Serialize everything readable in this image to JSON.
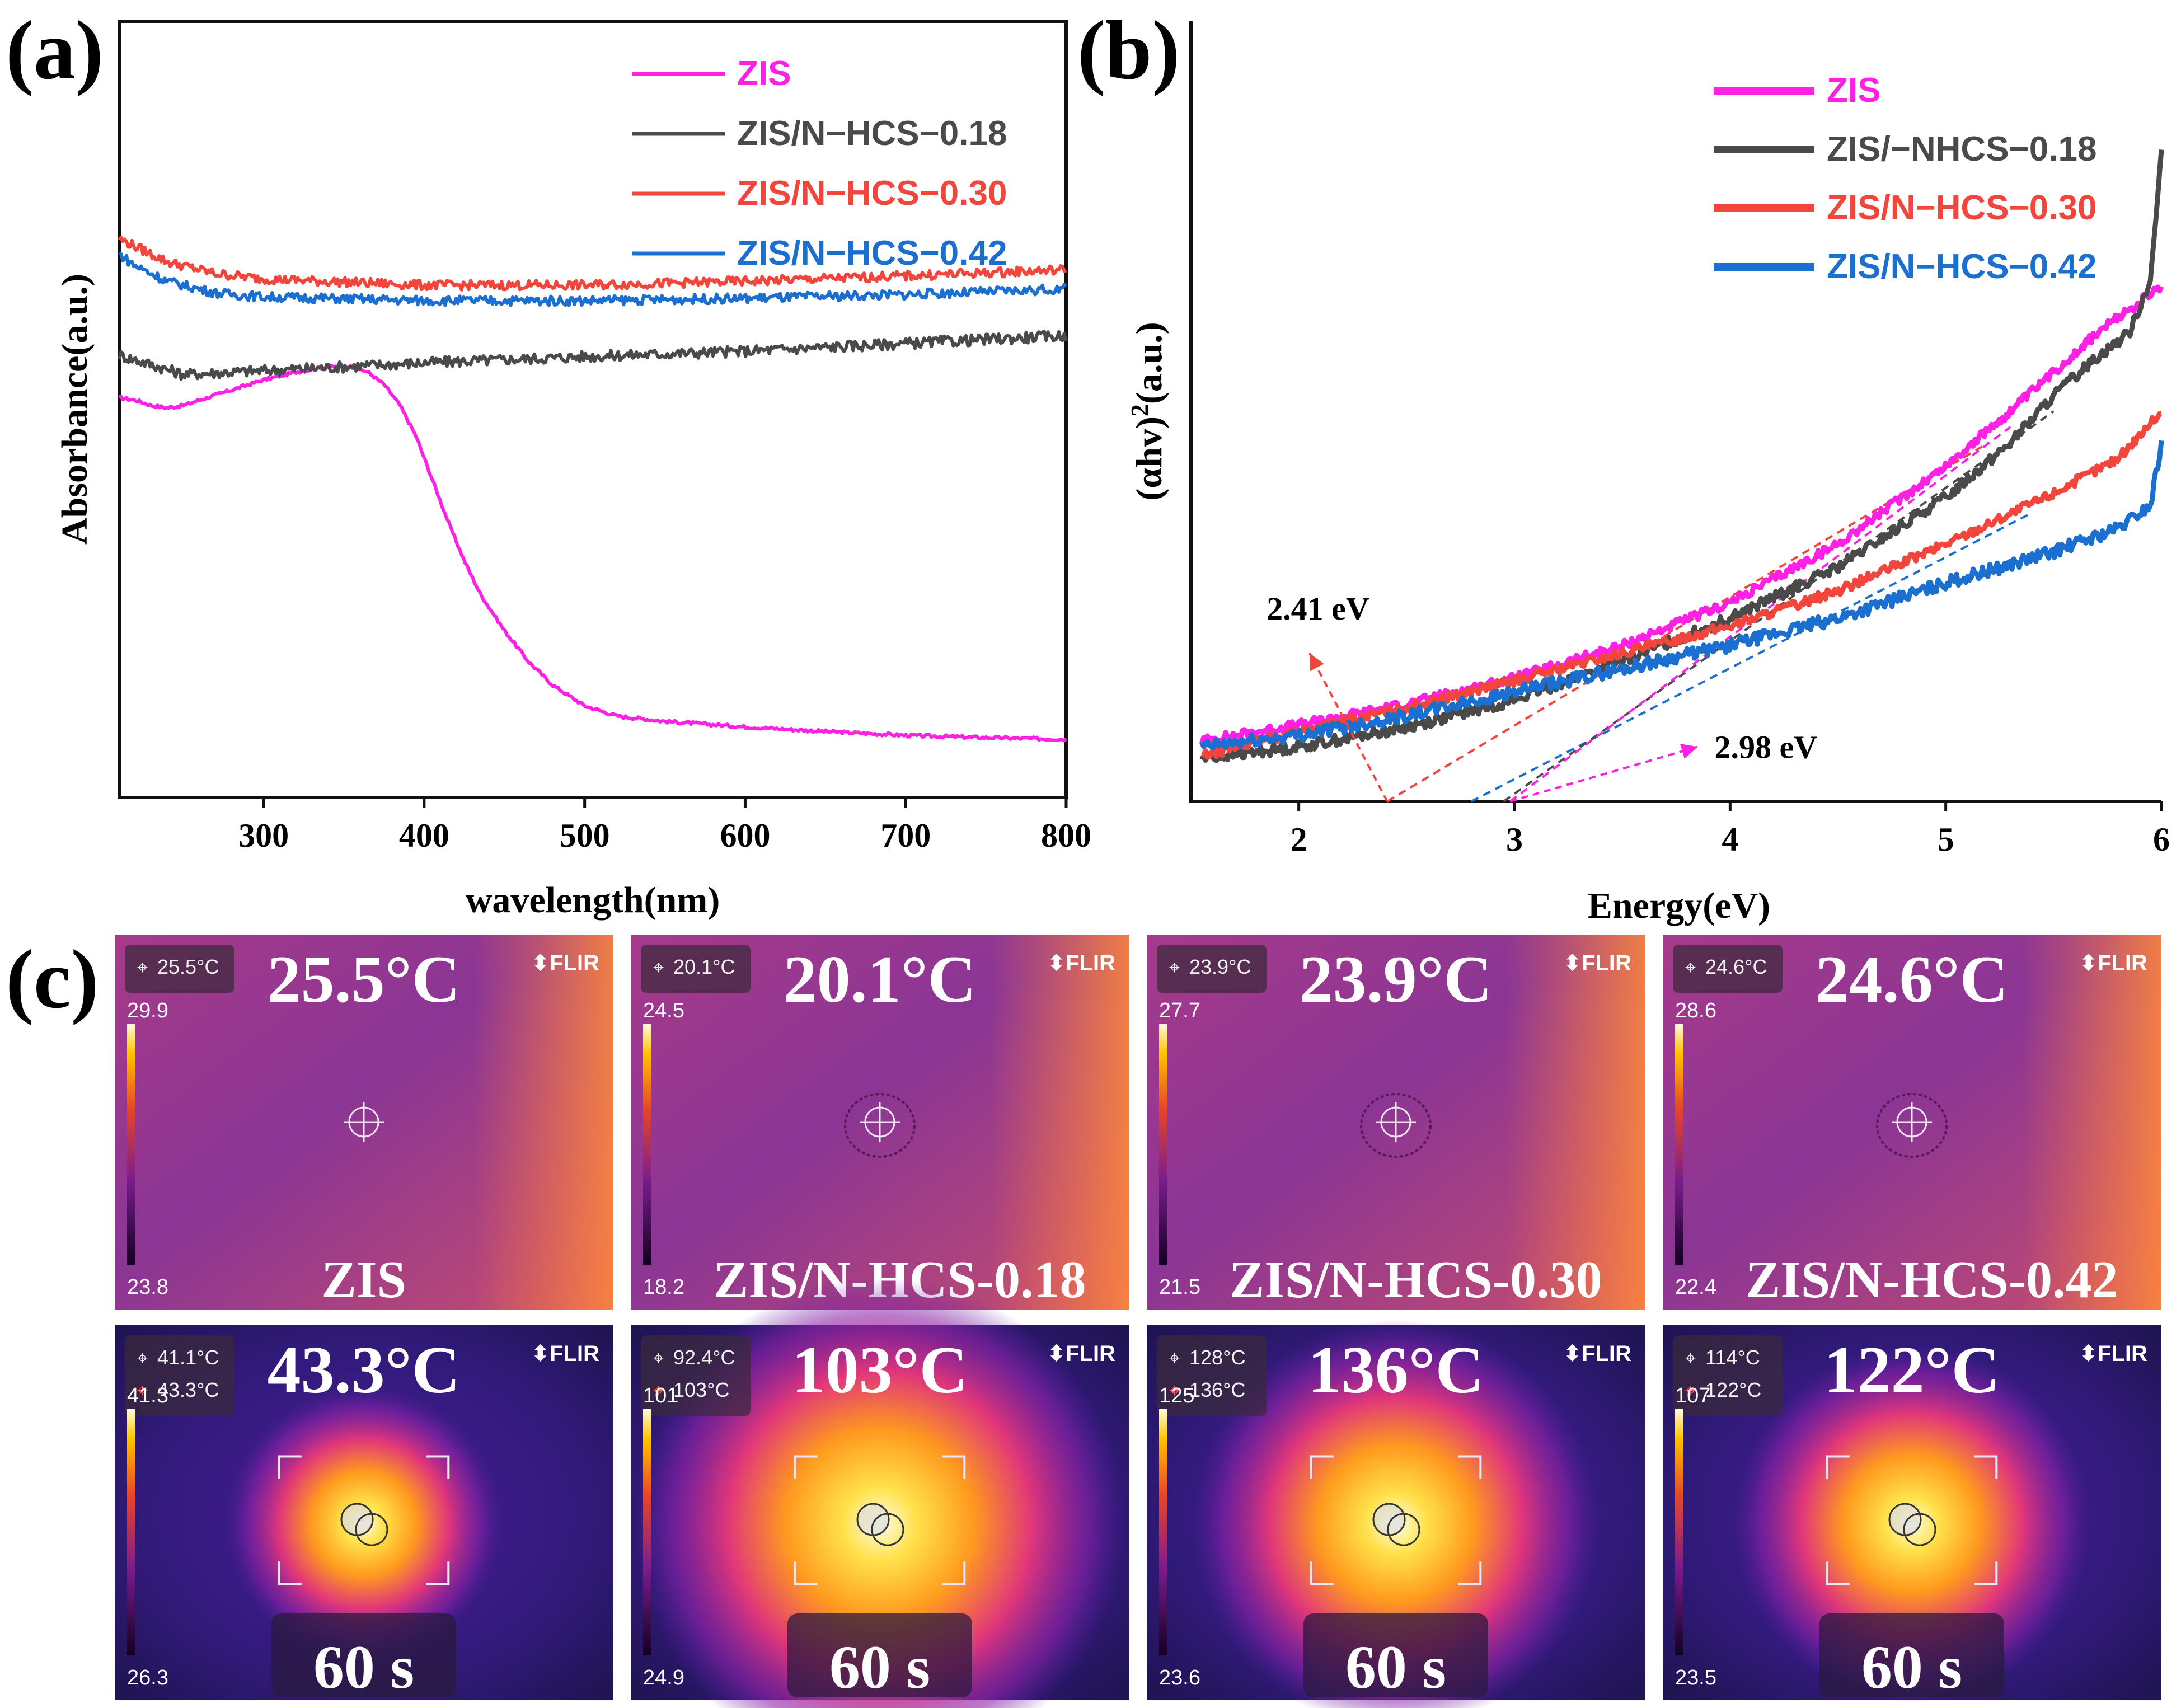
{
  "panel_labels": {
    "a": "(a)",
    "b": "(b)",
    "c": "(c)"
  },
  "colors": {
    "ZIS": "#ff20e6",
    "ZIS_N_HCS_0_18": "#4a4a4a",
    "ZIS_N_HCS_0_30": "#f2453c",
    "ZIS_N_HCS_0_42": "#1a6fd0"
  },
  "chart_data": [
    {
      "id": "a",
      "type": "line",
      "xlabel": "wavelength(nm)",
      "ylabel": "Absorbance(a.u.)",
      "xlim": [
        210,
        800
      ],
      "ylim": [
        0,
        1
      ],
      "xticks": [
        300,
        400,
        500,
        600,
        700,
        800
      ],
      "grid": false,
      "legend_position": "top-right",
      "series": [
        {
          "name": "ZIS",
          "color_key": "ZIS",
          "x": [
            210,
            220,
            230,
            240,
            250,
            260,
            280,
            300,
            320,
            340,
            355,
            365,
            375,
            385,
            395,
            405,
            415,
            425,
            435,
            450,
            465,
            480,
            500,
            520,
            550,
            600,
            650,
            700,
            750,
            800
          ],
          "y": [
            0.515,
            0.512,
            0.505,
            0.502,
            0.505,
            0.512,
            0.525,
            0.538,
            0.548,
            0.555,
            0.555,
            0.548,
            0.532,
            0.505,
            0.465,
            0.41,
            0.355,
            0.305,
            0.262,
            0.215,
            0.175,
            0.145,
            0.118,
            0.105,
            0.098,
            0.091,
            0.085,
            0.08,
            0.077,
            0.075
          ],
          "noise": 0.002
        },
        {
          "name": "ZIS/N−HCS−0.18",
          "color_key": "ZIS_N_HCS_0_18",
          "x": [
            210,
            250,
            300,
            400,
            500,
            600,
            700,
            800
          ],
          "y": [
            0.57,
            0.545,
            0.55,
            0.56,
            0.568,
            0.575,
            0.585,
            0.595
          ],
          "noise": 0.007
        },
        {
          "name": "ZIS/N−HCS−0.30",
          "color_key": "ZIS_N_HCS_0_30",
          "x": [
            210,
            220,
            240,
            270,
            300,
            400,
            500,
            600,
            700,
            800
          ],
          "y": [
            0.72,
            0.71,
            0.69,
            0.675,
            0.668,
            0.66,
            0.66,
            0.665,
            0.672,
            0.68
          ],
          "noise": 0.006
        },
        {
          "name": "ZIS/N−HCS−0.42",
          "color_key": "ZIS_N_HCS_0_42",
          "x": [
            210,
            220,
            240,
            270,
            300,
            400,
            500,
            600,
            700,
            800
          ],
          "y": [
            0.7,
            0.685,
            0.665,
            0.65,
            0.645,
            0.64,
            0.64,
            0.643,
            0.648,
            0.655
          ],
          "noise": 0.006
        }
      ]
    },
    {
      "id": "b",
      "type": "line",
      "xlabel": "Energy(eV)",
      "ylabel": "(αhv)",
      "ylabel_sup": "2",
      "ylabel_tail": "(a.u.)",
      "xlim": [
        1.5,
        6
      ],
      "ylim": [
        0,
        1
      ],
      "xticks": [
        2,
        3,
        4,
        5,
        6
      ],
      "grid": false,
      "legend_position": "top-right",
      "series": [
        {
          "name": "ZIS",
          "color_key": "ZIS",
          "x": [
            1.55,
            2,
            2.5,
            3,
            3.5,
            4,
            4.5,
            5,
            5.3,
            5.5,
            5.7,
            5.85,
            6
          ],
          "y": [
            0.078,
            0.098,
            0.125,
            0.158,
            0.2,
            0.255,
            0.33,
            0.43,
            0.5,
            0.55,
            0.6,
            0.63,
            0.66
          ],
          "noise": 0.006
        },
        {
          "name": "ZIS/−NHCS−0.18",
          "color_key": "ZIS_N_HCS_0_18",
          "x": [
            1.55,
            2,
            2.5,
            3,
            3.5,
            4,
            4.5,
            5,
            5.3,
            5.5,
            5.7,
            5.85,
            5.95,
            6
          ],
          "y": [
            0.055,
            0.07,
            0.095,
            0.13,
            0.18,
            0.235,
            0.3,
            0.39,
            0.46,
            0.52,
            0.57,
            0.6,
            0.67,
            0.83
          ],
          "noise": 0.007
        },
        {
          "name": "ZIS/N−HCS−0.30",
          "color_key": "ZIS_N_HCS_0_30",
          "x": [
            1.55,
            2,
            2.5,
            3,
            3.5,
            4,
            4.5,
            5,
            5.5,
            5.8,
            6
          ],
          "y": [
            0.058,
            0.09,
            0.12,
            0.155,
            0.19,
            0.225,
            0.27,
            0.33,
            0.395,
            0.44,
            0.5
          ],
          "noise": 0.006
        },
        {
          "name": "ZIS/N−HCS−0.42",
          "color_key": "ZIS_N_HCS_0_42",
          "x": [
            1.55,
            2,
            2.5,
            3,
            3.5,
            4,
            4.5,
            5,
            5.5,
            5.8,
            5.95,
            6
          ],
          "y": [
            0.07,
            0.085,
            0.11,
            0.14,
            0.17,
            0.2,
            0.235,
            0.28,
            0.32,
            0.35,
            0.38,
            0.46
          ],
          "noise": 0.008
        }
      ],
      "tangent_lines": [
        {
          "color_key": "ZIS_N_HCS_0_30",
          "x": [
            2.41,
            5.2
          ],
          "y": [
            0,
            0.46
          ]
        },
        {
          "color_key": "ZIS_N_HCS_0_42",
          "x": [
            2.8,
            5.4
          ],
          "y": [
            0,
            0.37
          ]
        },
        {
          "color_key": "ZIS_N_HCS_0_18",
          "x": [
            2.95,
            5.5
          ],
          "y": [
            0,
            0.5
          ]
        },
        {
          "color_key": "ZIS",
          "x": [
            2.98,
            5.3
          ],
          "y": [
            0,
            0.48
          ]
        }
      ],
      "annotations": [
        {
          "text": "2.41 eV",
          "arrow_from": [
            2.41,
            0
          ],
          "arrow_to": [
            2.05,
            0.19
          ],
          "color_key": "ZIS_N_HCS_0_30"
        },
        {
          "text": "2.98 eV",
          "arrow_from": [
            2.98,
            0
          ],
          "arrow_to": [
            3.85,
            0.07
          ],
          "color_key": "ZIS"
        }
      ]
    }
  ],
  "thermal": {
    "brand": "⬍FLIR",
    "images": [
      {
        "big_temp": "25.5°C",
        "spot_readouts": [
          "25.5°C"
        ],
        "scale_max": "29.9",
        "scale_min": "23.8",
        "caption": "ZIS",
        "theme": "before"
      },
      {
        "big_temp": "20.1°C",
        "spot_readouts": [
          "20.1°C"
        ],
        "scale_max": "24.5",
        "scale_min": "18.2",
        "caption": "ZIS/N-HCS-0.18",
        "theme": "before"
      },
      {
        "big_temp": "23.9°C",
        "spot_readouts": [
          "23.9°C"
        ],
        "scale_max": "27.7",
        "scale_min": "21.5",
        "caption": "ZIS/N-HCS-0.30",
        "theme": "before"
      },
      {
        "big_temp": "24.6°C",
        "spot_readouts": [
          "24.6°C"
        ],
        "scale_max": "28.6",
        "scale_min": "22.4",
        "caption": "ZIS/N-HCS-0.42",
        "theme": "before"
      },
      {
        "big_temp": "43.3°C",
        "spot_readouts": [
          "41.1°C",
          "43.3°C"
        ],
        "scale_max": "41.3",
        "scale_min": "26.3",
        "caption": "60 s",
        "theme": "after",
        "glow": 0.35
      },
      {
        "big_temp": "103°C",
        "spot_readouts": [
          "92.4°C",
          "103°C"
        ],
        "scale_max": "101",
        "scale_min": "24.9",
        "caption": "60 s",
        "theme": "after",
        "glow": 1.0
      },
      {
        "big_temp": "136°C",
        "spot_readouts": [
          "128°C",
          "136°C"
        ],
        "scale_max": "125",
        "scale_min": "23.6",
        "caption": "60 s",
        "theme": "after",
        "glow": 0.75
      },
      {
        "big_temp": "122°C",
        "spot_readouts": [
          "114°C",
          "122°C"
        ],
        "scale_max": "107",
        "scale_min": "23.5",
        "caption": "60 s",
        "theme": "after",
        "glow": 0.6
      }
    ]
  }
}
